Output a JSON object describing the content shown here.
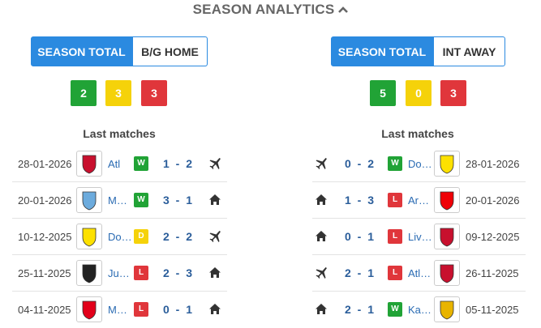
{
  "header": {
    "title": "SEASON ANALYTICS"
  },
  "panels": [
    {
      "tabs": [
        "SEASON TOTAL",
        "B/G HOME"
      ],
      "counts": [
        2,
        3,
        3
      ],
      "list_title": "Last matches",
      "matches": [
        {
          "date": "28-01-2026",
          "team": "Atl",
          "result": "W",
          "score": "1 - 2",
          "venue": "away"
        },
        {
          "date": "20-01-2026",
          "team": "M…",
          "result": "W",
          "score": "3 - 1",
          "venue": "home"
        },
        {
          "date": "10-12-2025",
          "team": "Do…",
          "result": "D",
          "score": "2 - 2",
          "venue": "away"
        },
        {
          "date": "25-11-2025",
          "team": "Ju…",
          "result": "L",
          "score": "2 - 3",
          "venue": "home"
        },
        {
          "date": "04-11-2025",
          "team": "M…",
          "result": "L",
          "score": "0 - 1",
          "venue": "home"
        }
      ]
    },
    {
      "tabs": [
        "SEASON TOTAL",
        "INT AWAY"
      ],
      "counts": [
        5,
        0,
        3
      ],
      "list_title": "Last matches",
      "matches": [
        {
          "date": "28-01-2026",
          "team": "Do…",
          "result": "W",
          "score": "0 - 2",
          "venue": "away"
        },
        {
          "date": "20-01-2026",
          "team": "Ar…",
          "result": "L",
          "score": "1 - 3",
          "venue": "home"
        },
        {
          "date": "09-12-2025",
          "team": "Liv…",
          "result": "L",
          "score": "0 - 1",
          "venue": "home"
        },
        {
          "date": "26-11-2025",
          "team": "Atl…",
          "result": "L",
          "score": "2 - 1",
          "venue": "away"
        },
        {
          "date": "05-11-2025",
          "team": "Ka…",
          "result": "W",
          "score": "2 - 1",
          "venue": "home"
        }
      ]
    }
  ]
}
